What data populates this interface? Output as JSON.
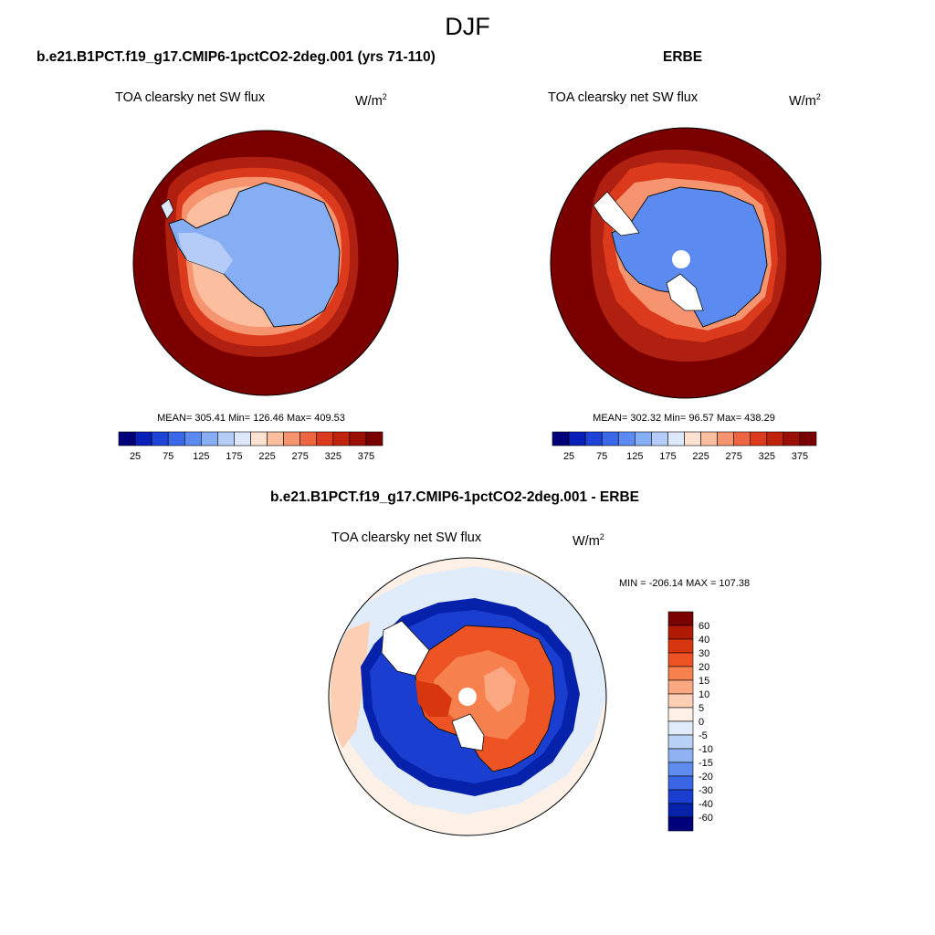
{
  "figure": {
    "title": "DJF"
  },
  "panels": {
    "model": {
      "title": "b.e21.B1PCT.f19_g17.CMIP6-1pctCO2-2deg.001 (yrs 71-110)",
      "variable": "TOA clearsky net SW flux",
      "units_base": "W/m",
      "units_exp": "2",
      "stats": "MEAN= 305.41  Min= 126.46  Max= 409.53"
    },
    "obs": {
      "title": "ERBE",
      "variable": "TOA clearsky net SW flux",
      "units_base": "W/m",
      "units_exp": "2",
      "stats": "MEAN= 302.32  Min=  96.57  Max= 438.29"
    },
    "diff": {
      "title": "b.e21.B1PCT.f19_g17.CMIP6-1pctCO2-2deg.001 - ERBE",
      "variable": "TOA clearsky net SW flux",
      "units_base": "W/m",
      "units_exp": "2",
      "stats": "MIN = -206.14 MAX = 107.38"
    }
  },
  "chart_data": [
    {
      "type": "map",
      "projection": "south-polar-stereographic",
      "panel": "model",
      "variable": "TOA clearsky net SW flux",
      "units": "W/m^2",
      "mean": 305.41,
      "min": 126.46,
      "max": 409.53,
      "colorbar": {
        "levels": [
          25,
          50,
          75,
          100,
          125,
          150,
          175,
          200,
          225,
          250,
          275,
          300,
          325,
          350,
          375
        ],
        "tick_labels": [
          "25",
          "75",
          "125",
          "175",
          "225",
          "275",
          "325",
          "375"
        ],
        "colors": [
          "#00007a",
          "#0a1fb8",
          "#1f43d6",
          "#3b68e8",
          "#5b8bf0",
          "#86aef5",
          "#b4ccf7",
          "#dde9fa",
          "#fde2d2",
          "#fbbe9f",
          "#f69470",
          "#ee6541",
          "#dc3a1c",
          "#c0230b",
          "#9b1004",
          "#7a0000"
        ]
      },
      "regions": [
        {
          "name": "Antarctic interior",
          "approx_value": 150
        },
        {
          "name": "Southern Ocean",
          "approx_value": 375
        }
      ]
    },
    {
      "type": "map",
      "projection": "south-polar-stereographic",
      "panel": "obs",
      "variable": "TOA clearsky net SW flux",
      "units": "W/m^2",
      "mean": 302.32,
      "min": 96.57,
      "max": 438.29,
      "colorbar": {
        "levels": [
          25,
          50,
          75,
          100,
          125,
          150,
          175,
          200,
          225,
          250,
          275,
          300,
          325,
          350,
          375
        ],
        "tick_labels": [
          "25",
          "75",
          "125",
          "175",
          "225",
          "275",
          "325",
          "375"
        ],
        "colors": [
          "#00007a",
          "#0a1fb8",
          "#1f43d6",
          "#3b68e8",
          "#5b8bf0",
          "#86aef5",
          "#b4ccf7",
          "#dde9fa",
          "#fde2d2",
          "#fbbe9f",
          "#f69470",
          "#ee6541",
          "#dc3a1c",
          "#c0230b",
          "#9b1004",
          "#7a0000"
        ]
      },
      "regions": [
        {
          "name": "Antarctic interior",
          "approx_value": 125
        },
        {
          "name": "Southern Ocean",
          "approx_value": 375
        }
      ]
    },
    {
      "type": "map",
      "projection": "south-polar-stereographic",
      "panel": "diff",
      "variable": "TOA clearsky net SW flux",
      "units": "W/m^2",
      "min": -206.14,
      "max": 107.38,
      "colorbar": {
        "levels": [
          -60,
          -40,
          -30,
          -20,
          -15,
          -10,
          -5,
          0,
          5,
          10,
          15,
          20,
          30,
          40,
          60
        ],
        "tick_labels": [
          "60",
          "40",
          "30",
          "20",
          "15",
          "10",
          "5",
          "0",
          "-5",
          "-10",
          "-15",
          "-20",
          "-30",
          "-40",
          "-60"
        ],
        "colors": [
          "#7a0000",
          "#b01a05",
          "#d8360f",
          "#ee5324",
          "#f7804f",
          "#fba882",
          "#fdd0b6",
          "#fdf0e6",
          "#e1ecfa",
          "#bad2f6",
          "#8fb3f2",
          "#5f8cee",
          "#3a66e6",
          "#1a3fd0",
          "#0622ab",
          "#00007a"
        ]
      },
      "regions": [
        {
          "name": "Antarctic interior",
          "approx_value": 25
        },
        {
          "name": "Sea-ice margin ring",
          "approx_value": -40
        },
        {
          "name": "Southern Ocean",
          "approx_value": 5
        }
      ]
    }
  ]
}
